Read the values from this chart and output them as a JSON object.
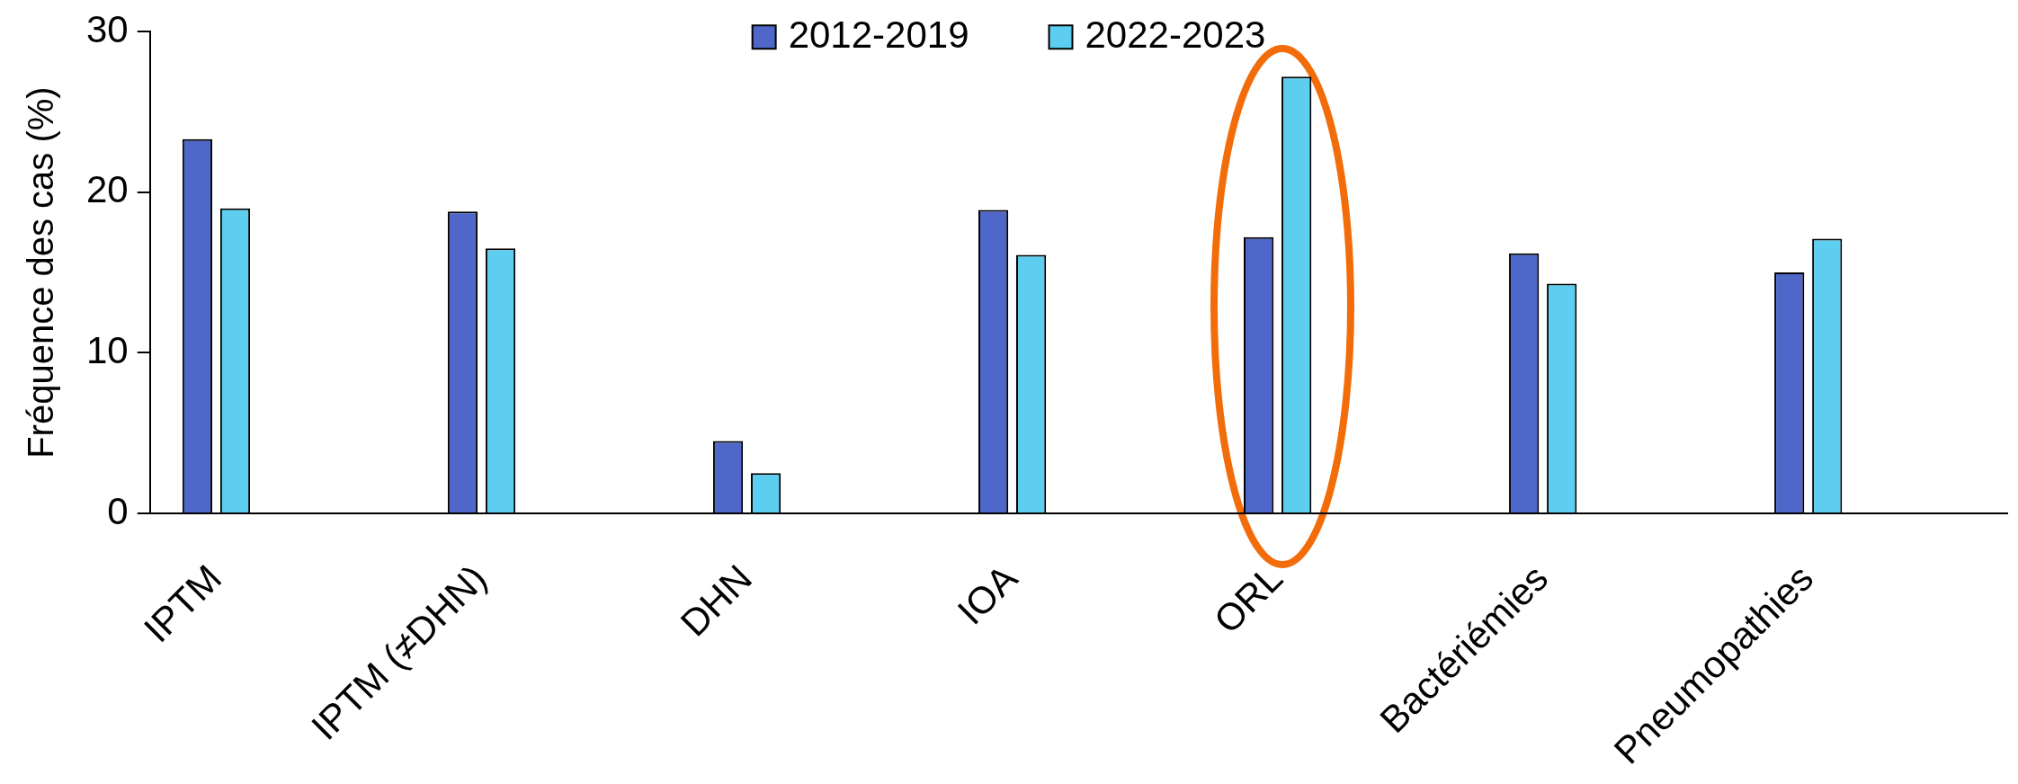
{
  "chart_data": {
    "type": "bar",
    "categories": [
      "IPTM",
      "IPTM (≠DHN)",
      "DHN",
      "IOA",
      "ORL",
      "Bactériémies",
      "Pneumopathies"
    ],
    "series": [
      {
        "name": "2012-2019",
        "color": "#4e67c8",
        "values": [
          23.3,
          18.8,
          4.5,
          18.9,
          17.2,
          16.2,
          15.0
        ]
      },
      {
        "name": "2022-2023",
        "color": "#5dcef0",
        "values": [
          19.0,
          16.5,
          2.5,
          16.1,
          27.2,
          14.3,
          17.1
        ]
      }
    ],
    "ylabel": "Fréquence des cas (%)",
    "ylim": [
      0,
      30
    ],
    "yticks": [
      0,
      10,
      20,
      30
    ],
    "grid": false,
    "legend": "top"
  }
}
